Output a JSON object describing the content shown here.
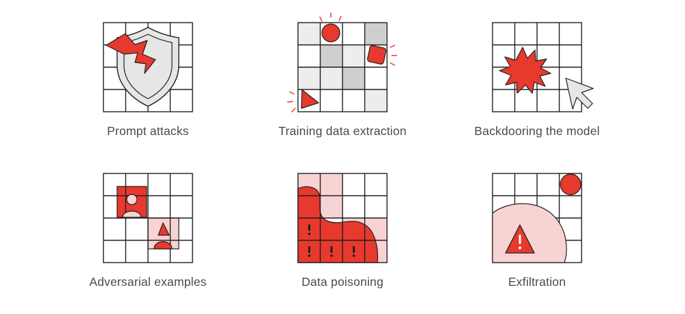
{
  "colors": {
    "red": "#E8392E",
    "pale_red": "#F8D3D3",
    "light_gray": "#EDEDED",
    "mid_gray": "#CFCFCF",
    "outline": "#1f1f1f",
    "text": "#4a4a4a"
  },
  "tiles": [
    {
      "id": "prompt-attacks",
      "label": "Prompt attacks",
      "icons": [
        "lightning-icon",
        "shield-icon"
      ]
    },
    {
      "id": "training-data-extraction",
      "label": "Training data extraction",
      "icons": [
        "circle-icon",
        "rounded-square-icon",
        "triangle-icon"
      ]
    },
    {
      "id": "backdooring-the-model",
      "label": "Backdooring the model",
      "icons": [
        "starburst-icon",
        "cursor-arrow-icon"
      ]
    },
    {
      "id": "adversarial-examples",
      "label": "Adversarial examples",
      "icons": [
        "person-icon",
        "shape-person-icon"
      ]
    },
    {
      "id": "data-poisoning",
      "label": "Data poisoning",
      "icons": [
        "exclamation-icon"
      ]
    },
    {
      "id": "exfiltration",
      "label": "Exfiltration",
      "icons": [
        "warning-triangle-icon",
        "circle-icon"
      ]
    }
  ]
}
